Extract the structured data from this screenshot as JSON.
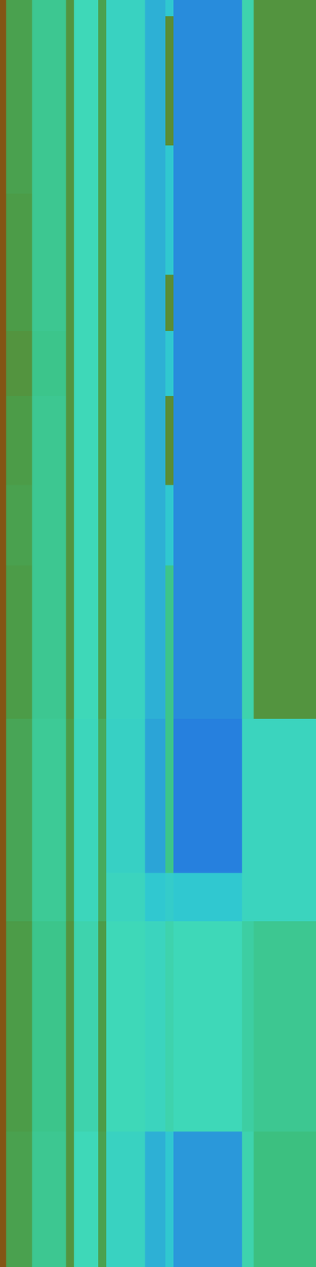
{
  "chart_data": {
    "type": "heatmap",
    "tick_labels": false,
    "xlim": [
      0,
      512
    ],
    "ylim": [
      0,
      2048
    ],
    "x_edges": [
      0,
      10,
      52,
      107,
      120,
      159,
      172,
      235,
      268,
      281,
      392,
      411,
      512
    ],
    "y_edges": [
      0,
      26,
      235,
      313,
      444,
      535,
      640,
      784,
      914,
      1162,
      1411,
      1489,
      1829,
      2048
    ],
    "cells": [
      [
        85,
        65,
        55,
        68,
        48,
        65,
        45,
        38,
        40,
        35,
        50,
        68
      ],
      [
        85,
        65,
        55,
        68,
        48,
        65,
        45,
        38,
        70,
        35,
        50,
        68
      ],
      [
        85,
        65,
        55,
        68,
        48,
        65,
        45,
        38,
        40,
        35,
        50,
        68
      ],
      [
        85,
        66,
        55,
        68,
        48,
        65,
        45,
        38,
        40,
        35,
        50,
        68
      ],
      [
        85,
        66,
        55,
        68,
        48,
        65,
        45,
        38,
        70,
        35,
        50,
        68
      ],
      [
        85,
        68,
        56,
        68,
        48,
        65,
        45,
        38,
        40,
        35,
        50,
        68
      ],
      [
        85,
        66,
        55,
        68,
        48,
        65,
        45,
        38,
        70,
        35,
        50,
        68
      ],
      [
        85,
        65,
        55,
        68,
        48,
        65,
        45,
        38,
        40,
        35,
        50,
        68
      ],
      [
        85,
        66,
        55,
        68,
        48,
        65,
        45,
        38,
        56,
        35,
        50,
        68
      ],
      [
        85,
        64,
        54,
        66,
        47,
        63,
        44,
        37,
        56,
        34,
        46,
        46
      ],
      [
        85,
        64,
        54,
        66,
        47,
        63,
        46,
        40,
        42,
        40,
        46,
        46
      ],
      [
        85,
        66,
        56,
        68,
        50,
        66,
        48,
        46,
        50,
        48,
        52,
        55
      ],
      [
        85,
        65,
        55,
        68,
        48,
        65,
        45,
        38,
        40,
        36,
        50,
        58
      ]
    ],
    "color_scale": {
      "values": [
        30,
        40,
        48,
        58,
        66,
        75,
        88
      ],
      "colors": [
        "#2050e8",
        "#30c8d0",
        "#3ed8b8",
        "#3cc080",
        "#4c9c48",
        "#6a7a20",
        "#8a4a10"
      ]
    }
  }
}
